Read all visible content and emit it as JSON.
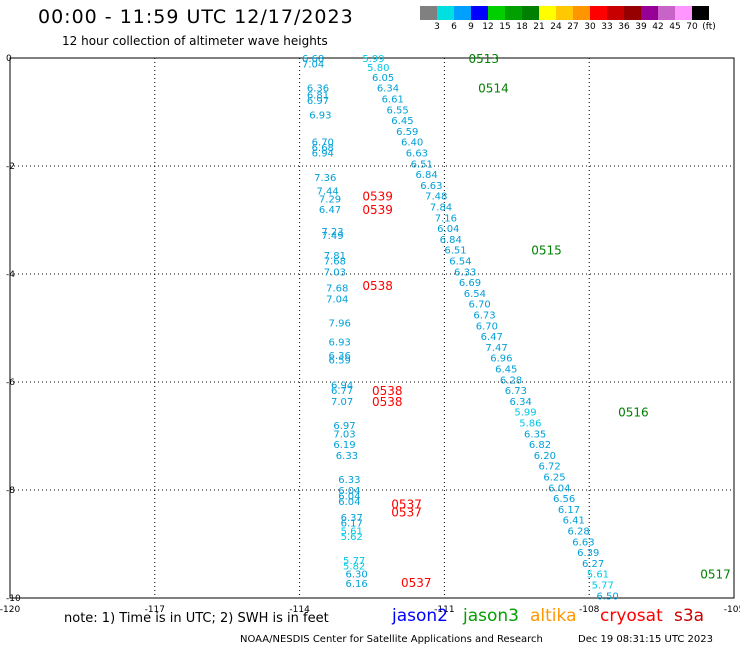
{
  "title": "00:00 - 11:59 UTC 12/17/2023",
  "subtitle": "12 hour collection of altimeter wave heights",
  "colorbar": {
    "colors": [
      "#808080",
      "#00e0e0",
      "#00a0ff",
      "#0000ff",
      "#00d000",
      "#00a000",
      "#008000",
      "#ffff00",
      "#ffc800",
      "#ff9600",
      "#ff0000",
      "#c80000",
      "#960000",
      "#960096",
      "#c864c8",
      "#ff96ff",
      "#000000"
    ],
    "labels": [
      "3",
      "6",
      "9",
      "12",
      "15",
      "18",
      "21",
      "24",
      "27",
      "30",
      "33",
      "36",
      "39",
      "42",
      "45",
      "70",
      "(ft)"
    ]
  },
  "axes": {
    "x_ticks": [
      "-120",
      "-117",
      "-114",
      "-111",
      "-108",
      "-105"
    ],
    "y_ticks": [
      "0",
      "-2",
      "-4",
      "-6",
      "-8",
      "-10"
    ]
  },
  "note": "note: 1) Time is in UTC; 2) SWH is in feet",
  "legend": [
    {
      "label": "jason2",
      "color": "#0000ff"
    },
    {
      "label": "jason3",
      "color": "#00a000"
    },
    {
      "label": "altika",
      "color": "#ff9600"
    },
    {
      "label": "cryosat",
      "color": "#ff0000"
    },
    {
      "label": "s3a",
      "color": "#c80000"
    }
  ],
  "footer": "NOAA/NESDIS Center for Satellite Applications and Research",
  "timestamp": "Dec 19 08:31:15 UTC 2023",
  "map_data": {
    "lon_range": [
      -120,
      -105
    ],
    "lat_range": [
      -10,
      0
    ],
    "time_labels": [
      {
        "text": "0513",
        "lon": -110.5,
        "lat": 0.0,
        "color": "#008000"
      },
      {
        "text": "0514",
        "lon": -110.3,
        "lat": -0.55,
        "color": "#008000"
      },
      {
        "text": "0515",
        "lon": -109.2,
        "lat": -3.55,
        "color": "#008000"
      },
      {
        "text": "0516",
        "lon": -107.4,
        "lat": -6.55,
        "color": "#008000"
      },
      {
        "text": "0517",
        "lon": -105.7,
        "lat": -9.55,
        "color": "#008000"
      },
      {
        "text": "0539",
        "lon": -112.7,
        "lat": -2.55,
        "color": "#ff0000"
      },
      {
        "text": "0539",
        "lon": -112.7,
        "lat": -2.8,
        "color": "#ff0000"
      },
      {
        "text": "0538",
        "lon": -112.7,
        "lat": -4.2,
        "color": "#ff0000"
      },
      {
        "text": "0538",
        "lon": -112.5,
        "lat": -6.15,
        "color": "#ff0000"
      },
      {
        "text": "0538",
        "lon": -112.5,
        "lat": -6.35,
        "color": "#ff0000"
      },
      {
        "text": "0537",
        "lon": -112.1,
        "lat": -8.25,
        "color": "#ff0000"
      },
      {
        "text": "0537",
        "lon": -112.1,
        "lat": -8.4,
        "color": "#ff0000"
      },
      {
        "text": "0537",
        "lon": -111.9,
        "lat": -9.7,
        "color": "#ff0000"
      }
    ],
    "track_a": [
      {
        "v": "5.99",
        "lon": -112.7,
        "lat": 0.0
      },
      {
        "v": "5.80",
        "lon": -112.6,
        "lat": -0.17
      },
      {
        "v": "6.05",
        "lon": -112.5,
        "lat": -0.35
      },
      {
        "v": "6.34",
        "lon": -112.4,
        "lat": -0.55
      },
      {
        "v": "6.61",
        "lon": -112.3,
        "lat": -0.75
      },
      {
        "v": "6.55",
        "lon": -112.2,
        "lat": -0.95
      },
      {
        "v": "6.45",
        "lon": -112.1,
        "lat": -1.15
      },
      {
        "v": "6.59",
        "lon": -112.0,
        "lat": -1.35
      },
      {
        "v": "6.40",
        "lon": -111.9,
        "lat": -1.55
      },
      {
        "v": "6.63",
        "lon": -111.8,
        "lat": -1.75
      },
      {
        "v": "6.51",
        "lon": -111.7,
        "lat": -1.95
      },
      {
        "v": "6.84",
        "lon": -111.6,
        "lat": -2.15
      },
      {
        "v": "6.63",
        "lon": -111.5,
        "lat": -2.35
      },
      {
        "v": "7.48",
        "lon": -111.4,
        "lat": -2.55
      },
      {
        "v": "7.84",
        "lon": -111.3,
        "lat": -2.75
      },
      {
        "v": "7.16",
        "lon": -111.2,
        "lat": -2.95
      },
      {
        "v": "6.04",
        "lon": -111.15,
        "lat": -3.15
      },
      {
        "v": "6.84",
        "lon": -111.1,
        "lat": -3.35
      },
      {
        "v": "6.51",
        "lon": -111.0,
        "lat": -3.55
      },
      {
        "v": "6.54",
        "lon": -110.9,
        "lat": -3.75
      },
      {
        "v": "6.33",
        "lon": -110.8,
        "lat": -3.95
      },
      {
        "v": "6.69",
        "lon": -110.7,
        "lat": -4.15
      },
      {
        "v": "6.54",
        "lon": -110.6,
        "lat": -4.35
      },
      {
        "v": "6.70",
        "lon": -110.5,
        "lat": -4.55
      },
      {
        "v": "6.73",
        "lon": -110.4,
        "lat": -4.75
      },
      {
        "v": "6.70",
        "lon": -110.35,
        "lat": -4.95
      },
      {
        "v": "6.47",
        "lon": -110.25,
        "lat": -5.15
      },
      {
        "v": "7.47",
        "lon": -110.15,
        "lat": -5.35
      },
      {
        "v": "6.96",
        "lon": -110.05,
        "lat": -5.55
      },
      {
        "v": "6.45",
        "lon": -109.95,
        "lat": -5.75
      },
      {
        "v": "6.28",
        "lon": -109.85,
        "lat": -5.95
      },
      {
        "v": "6.73",
        "lon": -109.75,
        "lat": -6.15
      },
      {
        "v": "6.34",
        "lon": -109.65,
        "lat": -6.35
      },
      {
        "v": "5.99",
        "lon": -109.55,
        "lat": -6.55
      },
      {
        "v": "5.86",
        "lon": -109.45,
        "lat": -6.75
      },
      {
        "v": "6.35",
        "lon": -109.35,
        "lat": -6.95
      },
      {
        "v": "6.82",
        "lon": -109.25,
        "lat": -7.15
      },
      {
        "v": "6.20",
        "lon": -109.15,
        "lat": -7.35
      },
      {
        "v": "6.72",
        "lon": -109.05,
        "lat": -7.55
      },
      {
        "v": "6.25",
        "lon": -108.95,
        "lat": -7.75
      },
      {
        "v": "6.04",
        "lon": -108.85,
        "lat": -7.95
      },
      {
        "v": "6.56",
        "lon": -108.75,
        "lat": -8.15
      },
      {
        "v": "6.17",
        "lon": -108.65,
        "lat": -8.35
      },
      {
        "v": "6.41",
        "lon": -108.55,
        "lat": -8.55
      },
      {
        "v": "6.28",
        "lon": -108.45,
        "lat": -8.75
      },
      {
        "v": "6.63",
        "lon": -108.35,
        "lat": -8.95
      },
      {
        "v": "6.39",
        "lon": -108.25,
        "lat": -9.15
      },
      {
        "v": "6.27",
        "lon": -108.15,
        "lat": -9.35
      },
      {
        "v": "5.61",
        "lon": -108.05,
        "lat": -9.55
      },
      {
        "v": "5.77",
        "lon": -107.95,
        "lat": -9.75
      },
      {
        "v": "6.50",
        "lon": -107.85,
        "lat": -9.95
      }
    ],
    "track_b": [
      {
        "v": "6.68",
        "lon": -113.95,
        "lat": 0.0
      },
      {
        "v": "7.04",
        "lon": -113.95,
        "lat": -0.1
      },
      {
        "v": "6.36",
        "lon": -113.85,
        "lat": -0.55
      },
      {
        "v": "6.81",
        "lon": -113.85,
        "lat": -0.68
      },
      {
        "v": "6.97",
        "lon": -113.85,
        "lat": -0.78
      },
      {
        "v": "6.93",
        "lon": -113.8,
        "lat": -1.05
      },
      {
        "v": "6.70",
        "lon": -113.75,
        "lat": -1.55
      },
      {
        "v": "6.68",
        "lon": -113.75,
        "lat": -1.65
      },
      {
        "v": "6.94",
        "lon": -113.75,
        "lat": -1.75
      },
      {
        "v": "7.36",
        "lon": -113.7,
        "lat": -2.2
      },
      {
        "v": "7.44",
        "lon": -113.65,
        "lat": -2.45
      },
      {
        "v": "7.29",
        "lon": -113.6,
        "lat": -2.6
      },
      {
        "v": "6.47",
        "lon": -113.6,
        "lat": -2.8
      },
      {
        "v": "7.23",
        "lon": -113.55,
        "lat": -3.2
      },
      {
        "v": "7.49",
        "lon": -113.55,
        "lat": -3.28
      },
      {
        "v": "7.81",
        "lon": -113.5,
        "lat": -3.65
      },
      {
        "v": "7.68",
        "lon": -113.5,
        "lat": -3.75
      },
      {
        "v": "7.03",
        "lon": -113.5,
        "lat": -3.95
      },
      {
        "v": "7.68",
        "lon": -113.45,
        "lat": -4.25
      },
      {
        "v": "7.04",
        "lon": -113.45,
        "lat": -4.45
      },
      {
        "v": "7.96",
        "lon": -113.4,
        "lat": -4.9
      },
      {
        "v": "6.93",
        "lon": -113.4,
        "lat": -5.25
      },
      {
        "v": "6.36",
        "lon": -113.4,
        "lat": -5.5
      },
      {
        "v": "6.59",
        "lon": -113.4,
        "lat": -5.58
      },
      {
        "v": "6.94",
        "lon": -113.35,
        "lat": -6.05
      },
      {
        "v": "6.77",
        "lon": -113.35,
        "lat": -6.15
      },
      {
        "v": "7.07",
        "lon": -113.35,
        "lat": -6.35
      },
      {
        "v": "6.97",
        "lon": -113.3,
        "lat": -6.8
      },
      {
        "v": "7.03",
        "lon": -113.3,
        "lat": -6.95
      },
      {
        "v": "6.19",
        "lon": -113.3,
        "lat": -7.15
      },
      {
        "v": "6.33",
        "lon": -113.25,
        "lat": -7.35
      },
      {
        "v": "6.33",
        "lon": -113.2,
        "lat": -7.8
      },
      {
        "v": "6.04",
        "lon": -113.2,
        "lat": -8.0
      },
      {
        "v": "6.04",
        "lon": -113.2,
        "lat": -8.1
      },
      {
        "v": "6.04",
        "lon": -113.2,
        "lat": -8.2
      },
      {
        "v": "6.37",
        "lon": -113.15,
        "lat": -8.5
      },
      {
        "v": "6.17",
        "lon": -113.15,
        "lat": -8.6
      },
      {
        "v": "5.61",
        "lon": -113.15,
        "lat": -8.75
      },
      {
        "v": "5.62",
        "lon": -113.15,
        "lat": -8.85
      },
      {
        "v": "5.77",
        "lon": -113.1,
        "lat": -9.3
      },
      {
        "v": "5.82",
        "lon": -113.1,
        "lat": -9.4
      },
      {
        "v": "6.30",
        "lon": -113.05,
        "lat": -9.55
      },
      {
        "v": "6.16",
        "lon": -113.05,
        "lat": -9.72
      }
    ]
  }
}
